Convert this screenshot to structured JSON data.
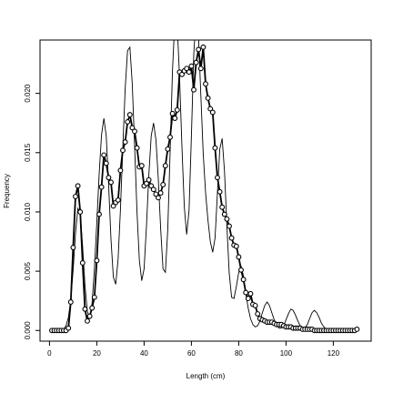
{
  "chart_data": {
    "type": "scatter",
    "title": "",
    "xlabel": "Length (cm)",
    "ylabel": "Frequency",
    "xlim": [
      -4,
      136
    ],
    "ylim": [
      -0.0009,
      0.0245
    ],
    "x_ticks": [
      0,
      20,
      40,
      60,
      80,
      100,
      120
    ],
    "x_tick_labels": [
      "0",
      "20",
      "40",
      "60",
      "80",
      "100",
      "120"
    ],
    "y_ticks": [
      0.0,
      0.005,
      0.01,
      0.015,
      0.02
    ],
    "y_tick_labels": [
      "0.000",
      "0.005",
      "0.010",
      "0.015",
      "0.020"
    ],
    "grid": false,
    "legend": "none",
    "series": [
      {
        "style": "points-and-line",
        "x": [
          1,
          2,
          3,
          4,
          5,
          6,
          7,
          8,
          9,
          10,
          11,
          12,
          13,
          14,
          15,
          16,
          17,
          18,
          19,
          20,
          21,
          22,
          23,
          24,
          25,
          26,
          27,
          28,
          29,
          30,
          31,
          32,
          33,
          34,
          35,
          36,
          37,
          38,
          39,
          40,
          41,
          42,
          43,
          44,
          45,
          46,
          47,
          48,
          49,
          50,
          51,
          52,
          53,
          54,
          55,
          56,
          57,
          58,
          59,
          60,
          61,
          62,
          63,
          64,
          65,
          66,
          67,
          68,
          69,
          70,
          71,
          72,
          73,
          74,
          75,
          76,
          77,
          78,
          79,
          80,
          81,
          82,
          83,
          84,
          85,
          86,
          87,
          88,
          89,
          90,
          91,
          92,
          93,
          94,
          95,
          96,
          97,
          98,
          99,
          100,
          101,
          102,
          103,
          104,
          105,
          106,
          107,
          108,
          109,
          110,
          111,
          112,
          113,
          114,
          115,
          116,
          117,
          118,
          119,
          120,
          121,
          122,
          123,
          124,
          125,
          126,
          127,
          128,
          129,
          130
        ],
        "y": [
          0.0,
          0.0,
          0.0,
          0.0,
          0.0,
          0.0,
          0.0,
          0.0002,
          0.0024,
          0.007,
          0.0113,
          0.0122,
          0.01,
          0.0057,
          0.0018,
          0.0008,
          0.0012,
          0.0019,
          0.0028,
          0.0059,
          0.0098,
          0.0121,
          0.0148,
          0.0141,
          0.0129,
          0.0125,
          0.0105,
          0.0108,
          0.011,
          0.0135,
          0.0152,
          0.0159,
          0.0176,
          0.0182,
          0.0171,
          0.0168,
          0.0154,
          0.0138,
          0.0139,
          0.0122,
          0.0124,
          0.0127,
          0.0122,
          0.0119,
          0.0115,
          0.0112,
          0.0116,
          0.0123,
          0.0139,
          0.0153,
          0.0163,
          0.0183,
          0.0179,
          0.0186,
          0.0218,
          0.0216,
          0.0219,
          0.0221,
          0.0218,
          0.0223,
          0.0203,
          0.0226,
          0.0237,
          0.0221,
          0.0239,
          0.0208,
          0.0196,
          0.0187,
          0.0184,
          0.0154,
          0.0129,
          0.0117,
          0.0104,
          0.0098,
          0.0094,
          0.0088,
          0.0078,
          0.0072,
          0.0071,
          0.0062,
          0.0051,
          0.0043,
          0.0032,
          0.0027,
          0.0031,
          0.0022,
          0.0021,
          0.0014,
          0.001,
          0.0009,
          0.0008,
          0.0007,
          0.0007,
          0.0007,
          0.0006,
          0.0005,
          0.0005,
          0.0005,
          0.0004,
          0.0003,
          0.0003,
          0.0003,
          0.0002,
          0.0002,
          0.0002,
          0.0002,
          0.0001,
          0.0001,
          0.0001,
          0.0001,
          0.0001,
          0.0,
          0.0,
          0.0,
          0.0,
          0.0,
          0.0,
          0.0,
          0.0,
          0.0,
          0.0,
          0.0,
          0.0,
          0.0,
          0.0,
          0.0,
          0.0,
          0.0,
          0.0,
          0.0001
        ]
      },
      {
        "style": "line",
        "x": [
          0,
          1,
          2,
          3,
          4,
          5,
          6,
          7,
          8,
          9,
          10,
          11,
          12,
          13,
          14,
          15,
          16,
          17,
          18,
          19,
          20,
          21,
          22,
          23,
          24,
          25,
          26,
          27,
          28,
          29,
          30,
          31,
          32,
          33,
          34,
          35,
          36,
          37,
          38,
          39,
          40,
          41,
          42,
          43,
          44,
          45,
          46,
          47,
          48,
          49,
          50,
          51,
          52,
          53,
          54,
          55,
          56,
          57,
          58,
          59,
          60,
          61,
          62,
          63,
          64,
          65,
          66,
          67,
          68,
          69,
          70,
          71,
          72,
          73,
          74,
          75,
          76,
          77,
          78,
          79,
          80,
          81,
          82,
          83,
          84,
          85,
          86,
          87,
          88,
          89,
          90,
          91,
          92,
          93,
          94,
          95,
          96,
          97,
          98,
          99,
          100,
          101,
          102,
          103,
          104,
          105,
          106,
          107,
          108,
          109,
          110,
          111,
          112,
          113,
          114,
          115,
          116,
          117,
          118,
          119,
          120
        ],
        "y": [
          0.0,
          0.0,
          0.0,
          0.0,
          0.0,
          0.0,
          0.0001,
          0.0004,
          0.0011,
          0.0026,
          0.0051,
          0.0082,
          0.0103,
          0.0099,
          0.0071,
          0.0038,
          0.0016,
          0.0011,
          0.0023,
          0.0052,
          0.0091,
          0.0132,
          0.0165,
          0.0179,
          0.0164,
          0.0123,
          0.0077,
          0.0045,
          0.0039,
          0.006,
          0.0102,
          0.0154,
          0.0204,
          0.0236,
          0.0239,
          0.0208,
          0.0155,
          0.01,
          0.0059,
          0.0042,
          0.0052,
          0.0088,
          0.0131,
          0.0164,
          0.0175,
          0.0161,
          0.0128,
          0.0086,
          0.0052,
          0.0049,
          0.0085,
          0.0151,
          0.0219,
          0.0262,
          0.0258,
          0.0213,
          0.0155,
          0.0104,
          0.0081,
          0.0101,
          0.0164,
          0.0233,
          0.0266,
          0.0248,
          0.0198,
          0.0149,
          0.0116,
          0.0093,
          0.0075,
          0.0066,
          0.0078,
          0.0116,
          0.0153,
          0.0162,
          0.0134,
          0.0088,
          0.0048,
          0.0028,
          0.0027,
          0.0037,
          0.0049,
          0.0054,
          0.0046,
          0.0031,
          0.0019,
          0.001,
          0.0005,
          0.0003,
          0.0004,
          0.0008,
          0.0015,
          0.0021,
          0.0024,
          0.0021,
          0.0015,
          0.0009,
          0.0005,
          0.0002,
          0.0002,
          0.0004,
          0.0009,
          0.0014,
          0.0018,
          0.0017,
          0.0013,
          0.0008,
          0.0004,
          0.0002,
          0.0002,
          0.0005,
          0.001,
          0.0015,
          0.0017,
          0.0015,
          0.0011,
          0.0006,
          0.0003,
          0.0001,
          0.0,
          0.0,
          0.0
        ]
      }
    ]
  }
}
